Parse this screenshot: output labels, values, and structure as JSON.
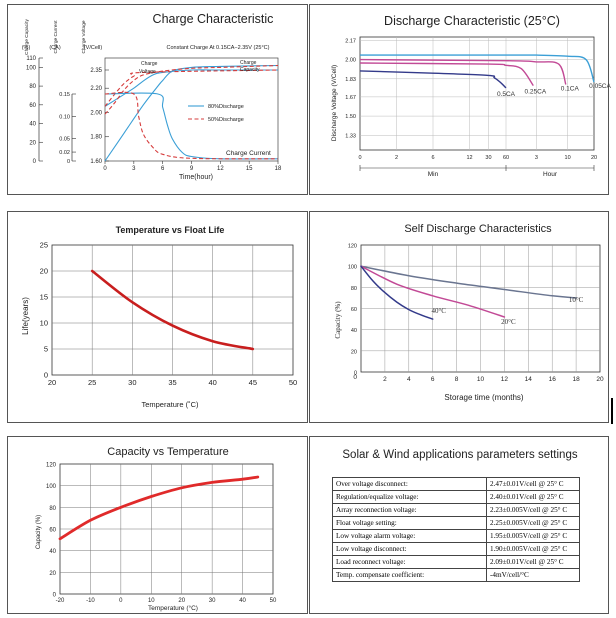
{
  "charge": {
    "title": "Charge Characteristic",
    "note": "Constant Charge At 0.15CA−2.35V (25°C)",
    "col_heads": [
      "Charge Capacity",
      "Charge Current",
      "Charge Voltage"
    ],
    "units": [
      "(%)",
      "(CA)",
      "(V/Cell)"
    ],
    "cap_ticks": [
      "110",
      "100",
      "80",
      "60",
      "40",
      "20",
      "0"
    ],
    "cur_ticks": [
      "0.15",
      "0.10",
      "0.05",
      "0.02",
      "0"
    ],
    "volt_ticks": [
      "2.35",
      "2.20",
      "2.00",
      "1.80",
      "1.60"
    ],
    "x_ticks": [
      "0",
      "3",
      "6",
      "9",
      "12",
      "15",
      "18"
    ],
    "xlabel": "Time(hour)",
    "legend": [
      "80%Discharge",
      "50%Discharge"
    ],
    "labels": {
      "cv": "Charge\nVoltage",
      "cc": "Charge\nCapacity",
      "ci": "Charge Current"
    },
    "chart_data": {
      "type": "line",
      "x_range": [
        0,
        18
      ],
      "series": [
        {
          "name": "80%Discharge",
          "kind": "Charge Voltage",
          "x": [
            0,
            2,
            3,
            4,
            5,
            6,
            9,
            12,
            18
          ],
          "y": [
            2.05,
            2.15,
            2.2,
            2.26,
            2.31,
            2.33,
            2.35,
            2.35,
            2.35
          ]
        },
        {
          "name": "50%Discharge",
          "kind": "Charge Voltage",
          "x": [
            0,
            1,
            2,
            3,
            4,
            18
          ],
          "y": [
            2.05,
            2.15,
            2.24,
            2.3,
            2.33,
            2.35
          ]
        },
        {
          "name": "80%Discharge",
          "kind": "Charge Capacity",
          "x": [
            0,
            2,
            4,
            5.5,
            6,
            7,
            9,
            12,
            18
          ],
          "y": [
            0,
            30,
            60,
            80,
            86,
            96,
            100,
            101,
            102
          ]
        },
        {
          "name": "50%Discharge",
          "kind": "Charge Capacity",
          "x": [
            0,
            1,
            2,
            3,
            4,
            6,
            9,
            12,
            18
          ],
          "y": [
            50,
            62,
            76,
            86,
            92,
            96,
            99,
            100,
            102
          ]
        },
        {
          "name": "80%Discharge",
          "kind": "Charge Current",
          "x": [
            0,
            5.5,
            6,
            6.5,
            7,
            8,
            9,
            12,
            18
          ],
          "y": [
            0.15,
            0.15,
            0.12,
            0.08,
            0.05,
            0.02,
            0.01,
            0.005,
            0.005
          ]
        },
        {
          "name": "50%Discharge",
          "kind": "Charge Current",
          "x": [
            0,
            3,
            3.5,
            4,
            5,
            6,
            9,
            18
          ],
          "y": [
            0.15,
            0.15,
            0.1,
            0.06,
            0.03,
            0.015,
            0.006,
            0.005
          ]
        }
      ]
    }
  },
  "discharge": {
    "title": "Discharge Characteristic (25°C)",
    "ylabel": "Discharge Voltage (V/Cell)",
    "y_ticks": [
      "2.17",
      "2.00",
      "1.83",
      "1.67",
      "1.50",
      "1.33"
    ],
    "x_ticks": [
      "0",
      "2",
      "6",
      "12",
      "30",
      "60",
      "3",
      "10",
      "20"
    ],
    "min_label": "Min",
    "hour_label": "Hour",
    "chart_data": {
      "type": "line",
      "x_scale": "piecewise time (minutes then hours)",
      "ylim": [
        1.2,
        2.2
      ],
      "series": [
        {
          "name": "0.5CA",
          "x": [
            "0min",
            "6min",
            "30min",
            "40min",
            "50min",
            "60min"
          ],
          "y": [
            1.9,
            1.88,
            1.86,
            1.84,
            1.8,
            1.75
          ]
        },
        {
          "name": "0.25CA",
          "x": [
            "0min",
            "30min",
            "60min",
            "2h",
            "2.8h"
          ],
          "y": [
            1.97,
            1.96,
            1.95,
            1.92,
            1.77
          ]
        },
        {
          "name": "0.1CA",
          "x": [
            "0min",
            "60min",
            "3h",
            "8h",
            "9.6h"
          ],
          "y": [
            2.0,
            1.99,
            1.98,
            1.96,
            1.78
          ]
        },
        {
          "name": "0.05CA",
          "x": [
            "0min",
            "60min",
            "3h",
            "10h",
            "17h",
            "20h"
          ],
          "y": [
            2.04,
            2.04,
            2.04,
            2.03,
            2.0,
            1.8
          ]
        }
      ]
    }
  },
  "float_life": {
    "title": "Temperature vs Float Life",
    "ylabel": "Life(years)",
    "xlabel": "Temperature (˚C)",
    "x_ticks": [
      "20",
      "25",
      "30",
      "35",
      "40",
      "45",
      "50"
    ],
    "y_ticks": [
      "25",
      "20",
      "15",
      "10",
      "5",
      "0"
    ],
    "chart_data": {
      "type": "line",
      "xlim": [
        20,
        50
      ],
      "ylim": [
        0,
        25
      ],
      "series": [
        {
          "x": [
            25,
            30,
            35,
            40,
            45
          ],
          "y": [
            20,
            14,
            9.5,
            6.5,
            5
          ]
        }
      ]
    }
  },
  "self_discharge": {
    "title": "Self Discharge Characteristics",
    "ylabel": "Capacity (%)",
    "xlabel": "Storage time (months)",
    "x_ticks": [
      "2",
      "4",
      "6",
      "8",
      "10",
      "12",
      "14",
      "16",
      "18",
      "20"
    ],
    "y_ticks": [
      "120",
      "100",
      "80",
      "60",
      "40",
      "20",
      "0"
    ],
    "chart_data": {
      "type": "line",
      "xlim": [
        0,
        20
      ],
      "ylim": [
        0,
        120
      ],
      "series": [
        {
          "name": "10°C",
          "x": [
            0,
            4,
            8,
            12,
            16,
            18
          ],
          "y": [
            100,
            91,
            84,
            78,
            72,
            70
          ]
        },
        {
          "name": "20°C",
          "x": [
            0,
            3,
            6,
            9,
            12
          ],
          "y": [
            100,
            83,
            72,
            63,
            52
          ]
        },
        {
          "name": "40°C",
          "x": [
            0,
            1,
            2,
            3,
            4,
            5,
            6
          ],
          "y": [
            100,
            86,
            75,
            66,
            59,
            54,
            50
          ]
        }
      ]
    }
  },
  "capacity_temp": {
    "title": "Capacity vs Temperature",
    "ylabel": "Capacity (%)",
    "xlabel": "Temperature (°C)",
    "x_ticks": [
      "-20",
      "-10",
      "0",
      "10",
      "20",
      "30",
      "40",
      "50"
    ],
    "y_ticks": [
      "120",
      "100",
      "80",
      "60",
      "40",
      "20",
      "0"
    ],
    "chart_data": {
      "type": "line",
      "xlim": [
        -20,
        50
      ],
      "ylim": [
        0,
        120
      ],
      "series": [
        {
          "x": [
            -20,
            -10,
            0,
            10,
            20,
            30,
            40,
            45
          ],
          "y": [
            51,
            68,
            80,
            90,
            98,
            103,
            106,
            108
          ]
        }
      ]
    }
  },
  "params": {
    "title": "Solar & Wind applications parameters settings",
    "rows": [
      {
        "label": "Over voltage disconnect:",
        "value": "2.47±0.01V/cell  @ 25° C"
      },
      {
        "label": "Regulation/equalize voltage:",
        "value": "2.40±0.01V/cell  @ 25° C"
      },
      {
        "label": "Array reconnection voltage:",
        "value": "2.23±0.005V/cell @ 25° C"
      },
      {
        "label": "Float voltage setting:",
        "value": "2.25±0.005V/cell @ 25° C"
      },
      {
        "label": "Low voltage alarm voltage:",
        "value": "1.95±0.005V/cell @ 25° C"
      },
      {
        "label": "Low voltage disconnect:",
        "value": "1.90±0.005V/cell @ 25° C"
      },
      {
        "label": "Load reconnect voltage:",
        "value": "2.09±0.01V/cell  @ 25° C"
      },
      {
        "label": "Temp. compensate coefficient:",
        "value": "-4mV/cell/°C"
      }
    ]
  },
  "colors": {
    "blue": "#3b9fd6",
    "red": "#d63c3c",
    "dark_red": "#c81e1e",
    "navy": "#333a8a",
    "magenta": "#c24a96",
    "slate": "#6a7590",
    "grid": "#999999"
  }
}
